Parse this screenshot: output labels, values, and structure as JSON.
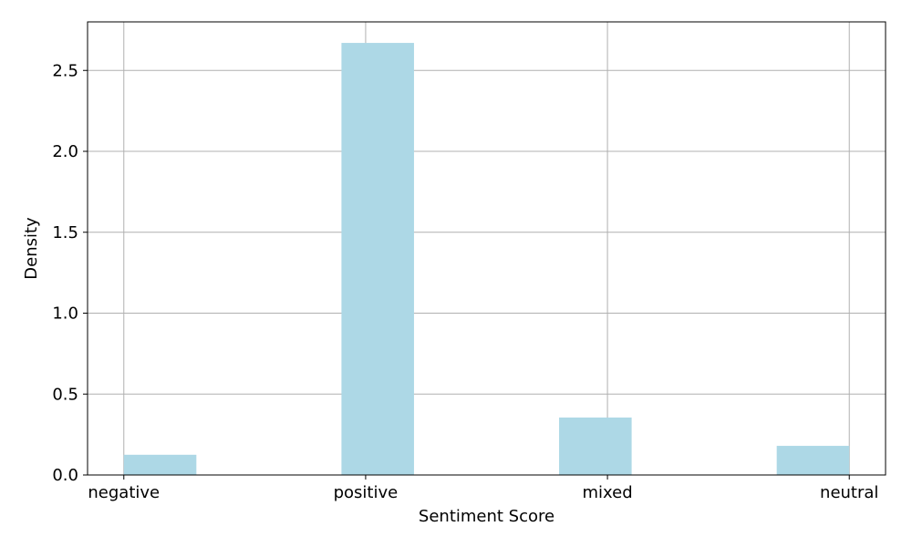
{
  "chart_data": {
    "type": "bar",
    "title": "",
    "xlabel": "Sentiment Score",
    "ylabel": "Density",
    "categories": [
      "negative",
      "positive",
      "mixed",
      "neutral"
    ],
    "bars": [
      {
        "x_start": 0.0,
        "x_end": 0.3,
        "density": 0.125
      },
      {
        "x_start": 0.9,
        "x_end": 1.2,
        "density": 2.67
      },
      {
        "x_start": 1.8,
        "x_end": 2.1,
        "density": 0.355
      },
      {
        "x_start": 2.7,
        "x_end": 3.0,
        "density": 0.18
      }
    ],
    "category_positions": [
      0,
      1,
      2,
      3
    ],
    "xlim": [
      -0.15,
      3.15
    ],
    "ylim": [
      0,
      2.8
    ],
    "y_ticks": [
      0.0,
      0.5,
      1.0,
      1.5,
      2.0,
      2.5
    ],
    "y_tick_labels": [
      "0.0",
      "0.5",
      "1.0",
      "1.5",
      "2.0",
      "2.5"
    ],
    "grid": true,
    "colors": {
      "bar": "#add8e6",
      "grid": "#b0b0b0",
      "axis": "#000000"
    }
  }
}
